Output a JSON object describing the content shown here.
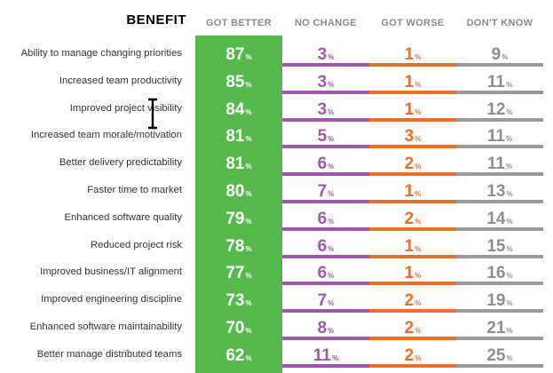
{
  "headers": {
    "benefit": "BENEFIT",
    "got_better": "GOT BETTER",
    "no_change": "NO CHANGE",
    "got_worse": "GOT WORSE",
    "dont_know": "DON'T KNOW"
  },
  "percent_symbol": "%",
  "colors": {
    "got_better": "#57b84e",
    "no_change": "#9d5aaa",
    "got_worse": "#e8702a",
    "dont_know": "#8e8e8e"
  },
  "chart_data": {
    "type": "table",
    "columns": [
      "GOT BETTER",
      "NO CHANGE",
      "GOT WORSE",
      "DON'T KNOW"
    ],
    "rows": [
      {
        "label": "Ability to manage changing priorities",
        "values": [
          87,
          3,
          1,
          9
        ]
      },
      {
        "label": "Increased team productivity",
        "values": [
          85,
          3,
          1,
          11
        ]
      },
      {
        "label": "Improved project visibility",
        "values": [
          84,
          3,
          1,
          12
        ]
      },
      {
        "label": "Increased team morale/motivation",
        "values": [
          81,
          5,
          3,
          11
        ]
      },
      {
        "label": "Better delivery predictability",
        "values": [
          81,
          6,
          2,
          11
        ]
      },
      {
        "label": "Faster time to market",
        "values": [
          80,
          7,
          1,
          13
        ]
      },
      {
        "label": "Enhanced software quality",
        "values": [
          79,
          6,
          2,
          14
        ]
      },
      {
        "label": "Reduced project risk",
        "values": [
          78,
          6,
          1,
          15
        ]
      },
      {
        "label": "Improved business/IT alignment",
        "values": [
          77,
          6,
          1,
          16
        ]
      },
      {
        "label": "Improved engineering discipline",
        "values": [
          73,
          7,
          2,
          19
        ]
      },
      {
        "label": "Enhanced software maintainability",
        "values": [
          70,
          8,
          2,
          21
        ]
      },
      {
        "label": "Better manage distributed teams",
        "values": [
          62,
          11,
          2,
          25
        ]
      }
    ]
  }
}
